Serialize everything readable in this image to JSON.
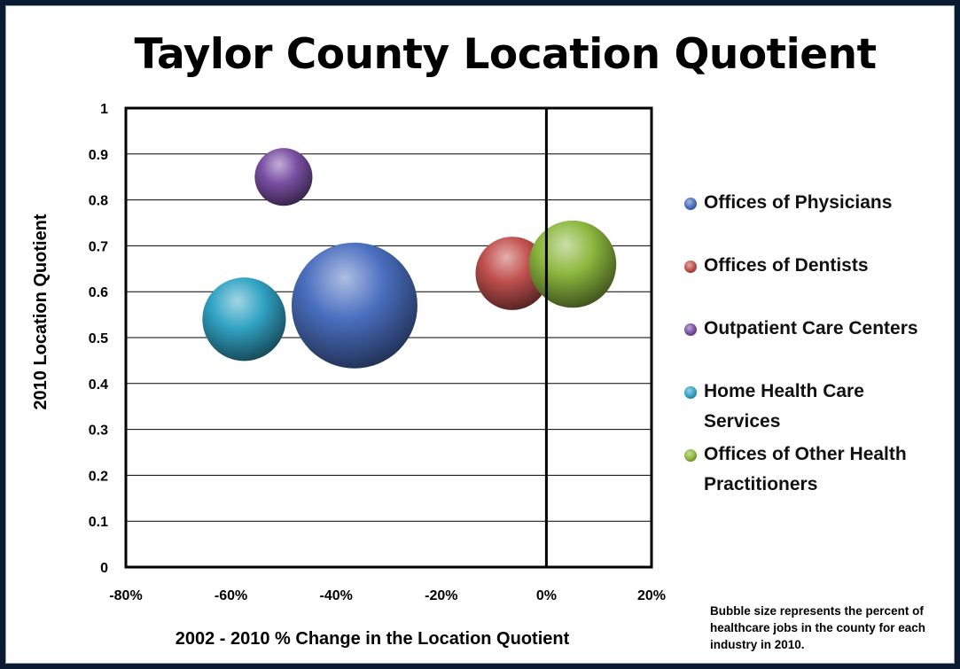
{
  "chart_data": {
    "type": "bubble",
    "title": "Taylor County Location Quotient",
    "xlabel": "2002 - 2010 % Change in the Location Quotient",
    "ylabel": "2010 Location Quotient",
    "xlim": [
      -0.8,
      0.2
    ],
    "ylim": [
      0,
      1
    ],
    "x_ticks": [
      "-80%",
      "-60%",
      "-40%",
      "-20%",
      "0%",
      "20%"
    ],
    "y_ticks": [
      "0",
      "0.1",
      "0.2",
      "0.3",
      "0.4",
      "0.5",
      "0.6",
      "0.7",
      "0.8",
      "0.9",
      "1"
    ],
    "grid": "horizontal",
    "legend_position": "right",
    "series": [
      {
        "name": "Offices of Physicians",
        "x": -0.365,
        "y": 0.57,
        "size": 1.0,
        "color": "#4a6fbf"
      },
      {
        "name": "Offices of Dentists",
        "x": -0.065,
        "y": 0.64,
        "size": 0.34,
        "color": "#c0504d"
      },
      {
        "name": "Outpatient Care Centers",
        "x": -0.5,
        "y": 0.85,
        "size": 0.21,
        "color": "#7a4fa3"
      },
      {
        "name": "Home Health Care Services",
        "x": -0.575,
        "y": 0.54,
        "size": 0.44,
        "color": "#31a3c4"
      },
      {
        "name": "Offices of Other Health Practitioners",
        "x": 0.05,
        "y": 0.66,
        "size": 0.48,
        "color": "#8cb83e"
      }
    ],
    "note": "Bubble size represents the percent of healthcare jobs in the county for each industry in 2010."
  }
}
